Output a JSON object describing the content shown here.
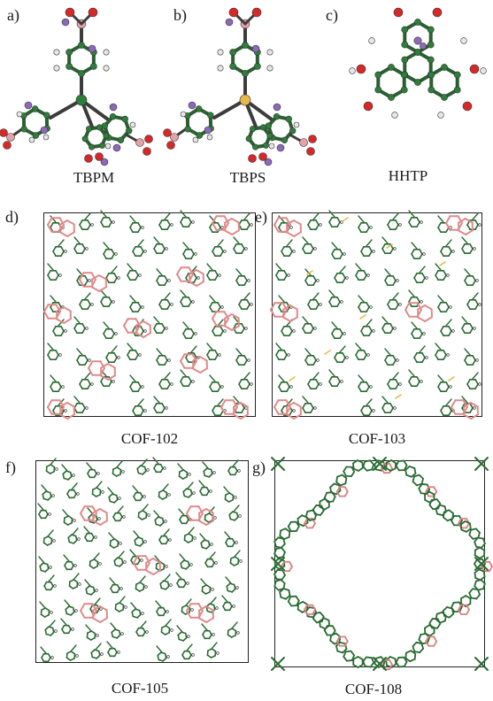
{
  "panels": [
    {
      "label": "a)",
      "caption": "TBPM"
    },
    {
      "label": "b)",
      "caption": "TBPS"
    },
    {
      "label": "c)",
      "caption": "HHTP"
    },
    {
      "label": "d)",
      "caption": "COF-102"
    },
    {
      "label": "e)",
      "caption": "COF-103"
    },
    {
      "label": "f)",
      "caption": "COF-105"
    },
    {
      "label": "g)",
      "caption": "COF-108"
    }
  ],
  "colors": {
    "carbon": "#2f7d3a",
    "oxygen": "#d62828",
    "boron": "#e5a1a6",
    "hydrogen": "#e6e6e6",
    "lithium": "#8e68b8",
    "silicon": "#e8b84a",
    "frame": "#222222"
  }
}
